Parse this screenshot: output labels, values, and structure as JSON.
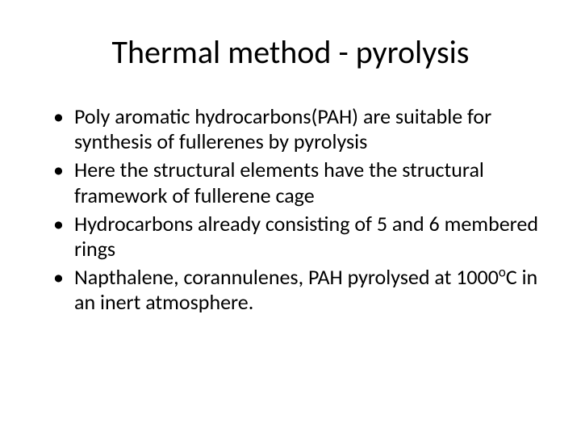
{
  "slide": {
    "title": "Thermal method - pyrolysis",
    "bullets": [
      {
        "text": "Poly aromatic hydrocarbons(PAH) are suitable for synthesis of fullerenes by pyrolysis"
      },
      {
        "text": "Here the structural elements have the structural framework of fullerene cage"
      },
      {
        "text": "Hydrocarbons already consisting of  5 and 6 membered rings"
      },
      {
        "text_pre": "Napthalene, corannulenes, PAH pyrolysed at 1000",
        "sup": "o",
        "text_post": "C in an inert atmosphere."
      }
    ],
    "style": {
      "background_color": "#ffffff",
      "text_color": "#000000",
      "title_fontsize": 40,
      "body_fontsize": 26,
      "font_family": "Calibri"
    }
  }
}
